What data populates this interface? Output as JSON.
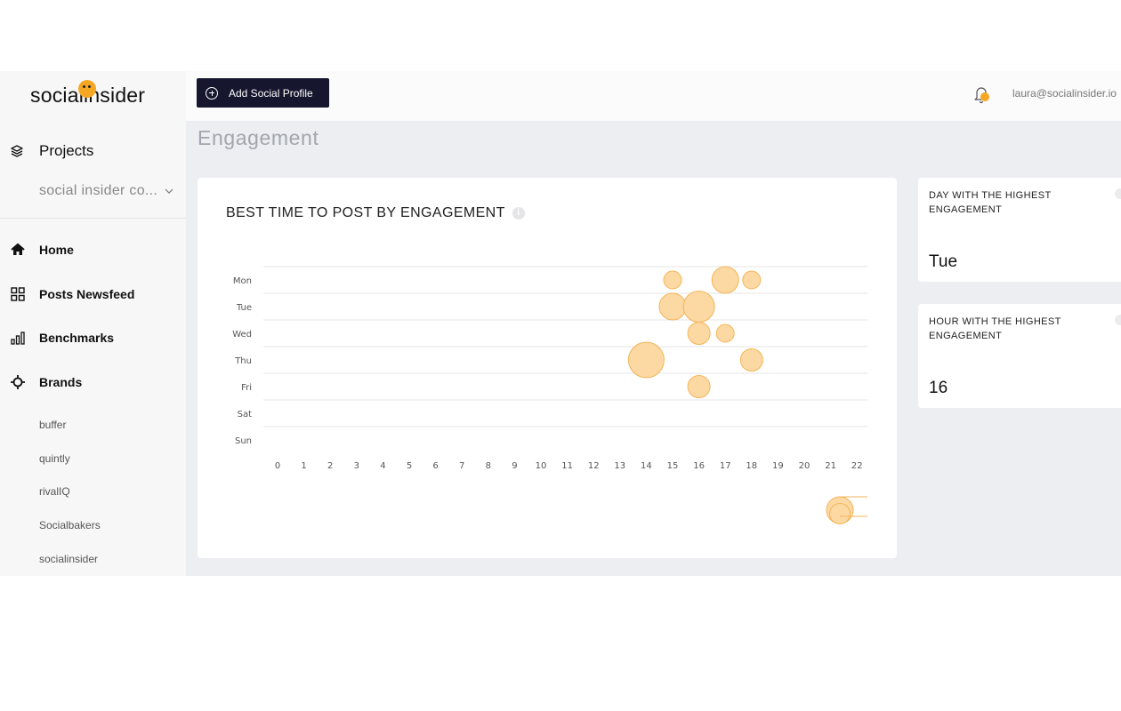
{
  "sidebar": {
    "logo_text": "socialinsider",
    "projects_label": "Projects",
    "project_select": "social insider co...",
    "nav": [
      {
        "label": "Home",
        "icon": "home-icon"
      },
      {
        "label": "Posts Newsfeed",
        "icon": "grid-icon"
      },
      {
        "label": "Benchmarks",
        "icon": "bar-chart-icon"
      },
      {
        "label": "Brands",
        "icon": "crosshair-icon"
      }
    ],
    "brands": [
      "buffer",
      "quintly",
      "rivalIQ",
      "Socialbakers",
      "socialinsider"
    ]
  },
  "topbar": {
    "add_button_label": "Add Social Profile",
    "user_email": "laura@socialinsider.io"
  },
  "page_title": "Engagement",
  "chart_card": {
    "title": "BEST TIME TO POST BY ENGAGEMENT"
  },
  "stats": [
    {
      "label": "DAY WITH THE HIGHEST ENGAGEMENT",
      "value": "Tue"
    },
    {
      "label": "HOUR WITH THE HIGHEST ENGAGEMENT",
      "value": "16"
    }
  ],
  "colors": {
    "accent": "#f5a623",
    "bubble_fill": "#fcd9a2",
    "bubble_stroke": "#f3b55a",
    "button_bg": "#16162e"
  },
  "chart_data": {
    "type": "scatter",
    "title": "BEST TIME TO POST BY ENGAGEMENT",
    "x": [
      0,
      1,
      2,
      3,
      4,
      5,
      6,
      7,
      8,
      9,
      10,
      11,
      12,
      13,
      14,
      15,
      16,
      17,
      18,
      19,
      20,
      21,
      22
    ],
    "y_categories": [
      "Mon",
      "Tue",
      "Wed",
      "Thu",
      "Fri",
      "Sat",
      "Sun"
    ],
    "xlim": [
      0,
      22
    ],
    "grid": true,
    "points": [
      {
        "day": "Mon",
        "hour": 15,
        "size": 2
      },
      {
        "day": "Mon",
        "hour": 17,
        "size": 3
      },
      {
        "day": "Mon",
        "hour": 18,
        "size": 2
      },
      {
        "day": "Tue",
        "hour": 15,
        "size": 3
      },
      {
        "day": "Tue",
        "hour": 16,
        "size": 3.5
      },
      {
        "day": "Wed",
        "hour": 16,
        "size": 2.5
      },
      {
        "day": "Wed",
        "hour": 17,
        "size": 2
      },
      {
        "day": "Thu",
        "hour": 14,
        "size": 4
      },
      {
        "day": "Thu",
        "hour": 18,
        "size": 2.5
      },
      {
        "day": "Fri",
        "hour": 16,
        "size": 2.5
      }
    ],
    "size_legend": [
      4,
      2.5
    ]
  }
}
